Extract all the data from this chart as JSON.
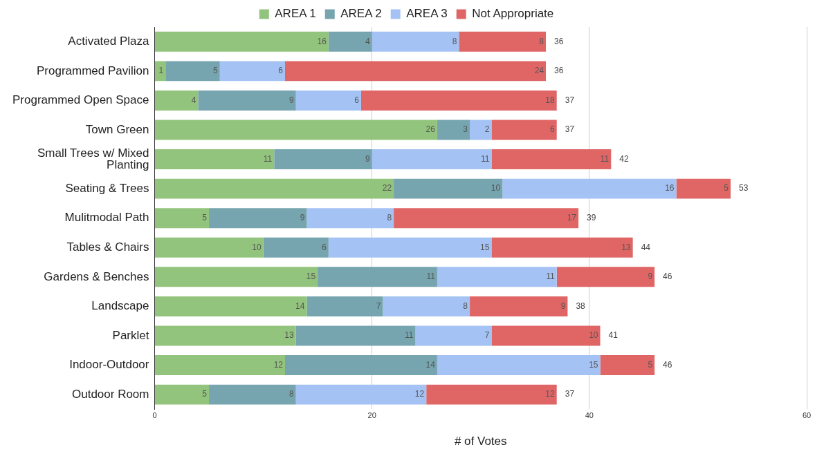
{
  "chart_data": {
    "type": "bar",
    "orientation": "horizontal",
    "stacked": true,
    "xlabel": "# of Votes",
    "categories": [
      "Activated Plaza",
      "Programmed Pavilion",
      "Programmed Open Space",
      "Town Green",
      "Small Trees w/ Mixed Planting",
      "Seating & Trees",
      "Mulitmodal Path",
      "Tables & Chairs",
      "Gardens & Benches",
      "Landscape",
      "Parklet",
      "Indoor-Outdoor",
      "Outdoor Room"
    ],
    "series": [
      {
        "name": "AREA 1",
        "color": "#93c47d",
        "values": [
          16,
          1,
          4,
          26,
          11,
          22,
          5,
          10,
          15,
          14,
          13,
          12,
          5
        ]
      },
      {
        "name": "AREA 2",
        "color": "#76a5af",
        "values": [
          4,
          5,
          9,
          3,
          9,
          10,
          9,
          6,
          11,
          7,
          11,
          14,
          8
        ]
      },
      {
        "name": "AREA 3",
        "color": "#a4c2f4",
        "values": [
          8,
          6,
          6,
          2,
          11,
          16,
          8,
          15,
          11,
          8,
          7,
          15,
          12
        ]
      },
      {
        "name": "Not Appropriate",
        "color": "#e06666",
        "values": [
          8,
          24,
          18,
          6,
          11,
          5,
          17,
          13,
          9,
          9,
          10,
          5,
          12
        ]
      }
    ],
    "totals": [
      "36",
      "36",
      "37",
      "37",
      "42",
      "53",
      "39",
      "44",
      "46",
      "38",
      "41",
      "46",
      "37"
    ],
    "data_labels": true,
    "xlim": [
      0,
      60
    ],
    "xticks": [
      0,
      20,
      40,
      60
    ],
    "grid": "x",
    "legend": "top"
  }
}
